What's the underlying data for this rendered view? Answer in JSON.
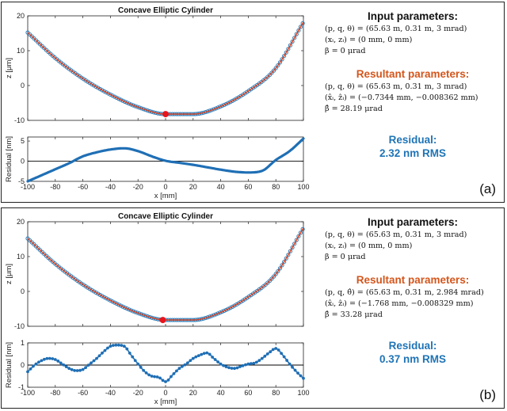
{
  "figure": {
    "panels": [
      {
        "tag": "(a)",
        "title": "Concave Elliptic Cylinder",
        "input_heading": "Input parameters:",
        "input_lines": [
          "(p, q, θ) = (65.63 m, 0.31 m, 3 mrad)",
          "(xᵢ, zᵢ) = (0 mm, 0 mm)",
          "β = 0 μrad"
        ],
        "result_heading": "Resultant parameters:",
        "result_lines": [
          "(p, q, θ) = (65.63 m, 0.31 m, 3 mrad)",
          "(x̂ᵢ, ẑᵢ) = (−0.7344 mm, −0.008362 mm)",
          "β̂ = 28.19 μrad"
        ],
        "residual_heading": "Residual:",
        "residual_value": "2.32 nm RMS"
      },
      {
        "tag": "(b)",
        "title": "Concave Elliptic Cylinder",
        "input_heading": "Input parameters:",
        "input_lines": [
          "(p, q, θ) = (65.63 m, 0.31 m, 3 mrad)",
          "(xᵢ, zᵢ) = (0 mm, 0 mm)",
          "β = 0 μrad"
        ],
        "result_heading": "Resultant parameters:",
        "result_lines": [
          "(p, q, θ̂) = (65.63 m, 0.31 m, 2.984 mrad)",
          "(x̂ᵢ, ẑᵢ) = (−1.768 mm, −0.008329 mm)",
          "β̂ = 33.28 μrad"
        ],
        "residual_heading": "Residual:",
        "residual_value": "0.37 nm RMS"
      }
    ],
    "colors": {
      "profile": "#2b7bb9",
      "fit": "#d9401c",
      "vertex": "#e8141c",
      "residual": "#1f6fb5",
      "zero_line": "#000000"
    }
  },
  "chart_data": [
    {
      "type": "line",
      "panel": "a",
      "title": "Concave Elliptic Cylinder",
      "xlabel": "",
      "ylabel": "z [μm]",
      "xlim": [
        -100,
        100
      ],
      "ylim": [
        -10,
        20
      ],
      "xticks": [
        -100,
        -80,
        -60,
        -40,
        -20,
        0,
        20,
        40,
        60,
        80,
        100
      ],
      "yticks": [
        -10,
        0,
        10,
        20
      ],
      "x": [
        -100,
        -80,
        -60,
        -40,
        -20,
        0,
        20,
        40,
        60,
        80,
        100
      ],
      "series": [
        {
          "values": [
            15.2,
            7.9,
            2.0,
            -2.6,
            -6.2,
            -8.2,
            -8.2,
            -6.0,
            -1.6,
            5.0,
            18.2
          ]
        }
      ],
      "vertex": [
        0,
        -8.2
      ]
    },
    {
      "type": "line",
      "panel": "a",
      "xlabel": "x [mm]",
      "ylabel": "Residual [nm]",
      "xlim": [
        -100,
        100
      ],
      "ylim": [
        -5,
        6
      ],
      "xticks": [
        -100,
        -80,
        -60,
        -40,
        -20,
        0,
        20,
        40,
        60,
        80,
        100
      ],
      "xtick_labels": [
        "-100",
        "-80",
        "-60",
        "-40",
        "-20",
        "0",
        "20",
        "40",
        "60",
        "80",
        "100"
      ],
      "yticks": [
        -5,
        0,
        5
      ],
      "x": [
        -100,
        -90,
        -80,
        -70,
        -60,
        -50,
        -40,
        -30,
        -20,
        -10,
        0,
        10,
        20,
        30,
        40,
        50,
        60,
        70,
        80,
        90,
        100
      ],
      "series": [
        {
          "values": [
            -5.0,
            -3.5,
            -2.0,
            -0.5,
            1.2,
            2.2,
            2.9,
            3.2,
            2.5,
            1.2,
            0.1,
            -0.4,
            -0.9,
            -1.5,
            -2.1,
            -2.6,
            -2.8,
            -2.4,
            0.3,
            2.5,
            5.6
          ]
        }
      ]
    },
    {
      "type": "line",
      "panel": "b",
      "title": "Concave Elliptic Cylinder",
      "xlabel": "",
      "ylabel": "z [μm]",
      "xlim": [
        -100,
        100
      ],
      "ylim": [
        -10,
        20
      ],
      "xticks": [
        -100,
        -80,
        -60,
        -40,
        -20,
        0,
        20,
        40,
        60,
        80,
        100
      ],
      "yticks": [
        -10,
        0,
        10,
        20
      ],
      "x": [
        -100,
        -80,
        -60,
        -40,
        -20,
        0,
        20,
        40,
        60,
        80,
        100
      ],
      "series": [
        {
          "values": [
            15.2,
            7.9,
            2.0,
            -2.6,
            -6.2,
            -8.2,
            -8.2,
            -6.0,
            -1.6,
            5.0,
            18.2
          ]
        }
      ],
      "vertex": [
        -2,
        -8.2
      ]
    },
    {
      "type": "line",
      "panel": "b",
      "xlabel": "x [mm]",
      "ylabel": "Residual [nm]",
      "xlim": [
        -100,
        100
      ],
      "ylim": [
        -1,
        1
      ],
      "xticks": [
        -100,
        -80,
        -60,
        -40,
        -20,
        0,
        20,
        40,
        60,
        80,
        100
      ],
      "xtick_labels": [
        "-100",
        "-80",
        "-60",
        "-40",
        "-20",
        "0",
        "20",
        "40",
        "60",
        "80",
        "100"
      ],
      "yticks": [
        -1,
        0,
        1
      ],
      "x": [
        -100,
        -95,
        -90,
        -85,
        -80,
        -75,
        -70,
        -65,
        -60,
        -55,
        -50,
        -45,
        -40,
        -35,
        -30,
        -25,
        -20,
        -15,
        -10,
        -5,
        0,
        5,
        10,
        15,
        20,
        25,
        30,
        35,
        40,
        45,
        50,
        55,
        60,
        65,
        70,
        75,
        80,
        85,
        90,
        95,
        100
      ],
      "series": [
        {
          "values": [
            -0.3,
            0.0,
            0.2,
            0.3,
            0.25,
            0.05,
            -0.15,
            -0.25,
            -0.2,
            0.05,
            0.3,
            0.6,
            0.85,
            0.9,
            0.85,
            0.45,
            0.05,
            -0.3,
            -0.5,
            -0.55,
            -0.75,
            -0.45,
            -0.15,
            0.05,
            0.3,
            0.45,
            0.55,
            0.3,
            0.05,
            -0.1,
            -0.15,
            -0.05,
            0.05,
            0.1,
            0.3,
            0.55,
            0.75,
            0.45,
            0.05,
            -0.3,
            -0.6
          ]
        }
      ]
    }
  ]
}
